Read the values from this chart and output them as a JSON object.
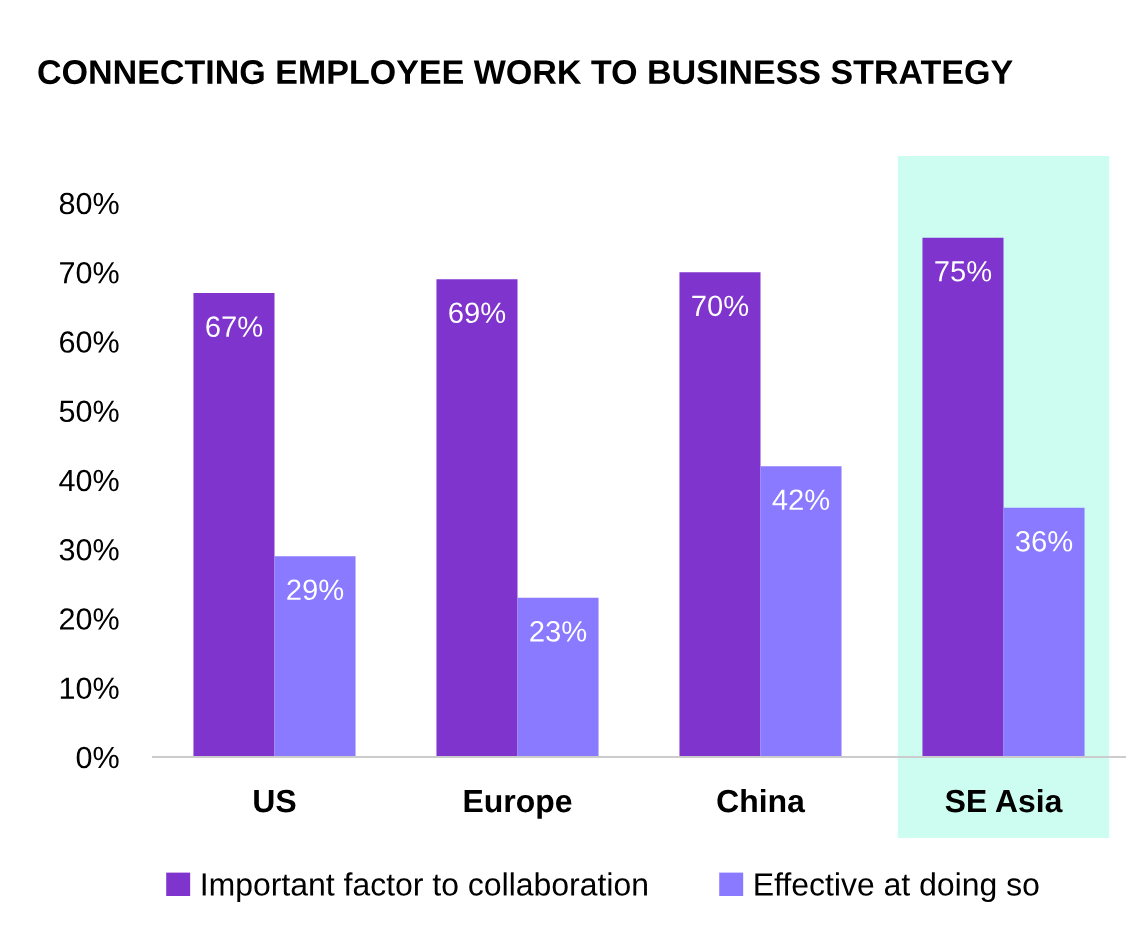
{
  "chart_data": {
    "type": "bar",
    "title": "CONNECTING EMPLOYEE WORK TO BUSINESS STRATEGY",
    "categories": [
      "US",
      "Europe",
      "China",
      "SE Asia"
    ],
    "series": [
      {
        "name": "Important factor to collaboration",
        "color": "#7f35cd",
        "values": [
          67,
          69,
          70,
          75
        ],
        "value_labels": [
          "67%",
          "69%",
          "70%",
          "75%"
        ]
      },
      {
        "name": "Effective at doing so",
        "color": "#8a7aff",
        "values": [
          29,
          23,
          42,
          36
        ],
        "value_labels": [
          "29%",
          "23%",
          "42%",
          "36%"
        ]
      }
    ],
    "ylim": [
      0,
      80
    ],
    "yticks": [
      {
        "value": 0,
        "label": "0%"
      },
      {
        "value": 10,
        "label": "10%"
      },
      {
        "value": 20,
        "label": "20%"
      },
      {
        "value": 30,
        "label": "30%"
      },
      {
        "value": 40,
        "label": "40%"
      },
      {
        "value": 50,
        "label": "50%"
      },
      {
        "value": 60,
        "label": "60%"
      },
      {
        "value": 70,
        "label": "70%"
      },
      {
        "value": 80,
        "label": "80%"
      }
    ],
    "bands": [
      {
        "axis": "x",
        "from": "SE Asia",
        "to": "SE Asia",
        "color": "#ccfdf0"
      }
    ],
    "legend": "bottom",
    "grid": false
  }
}
